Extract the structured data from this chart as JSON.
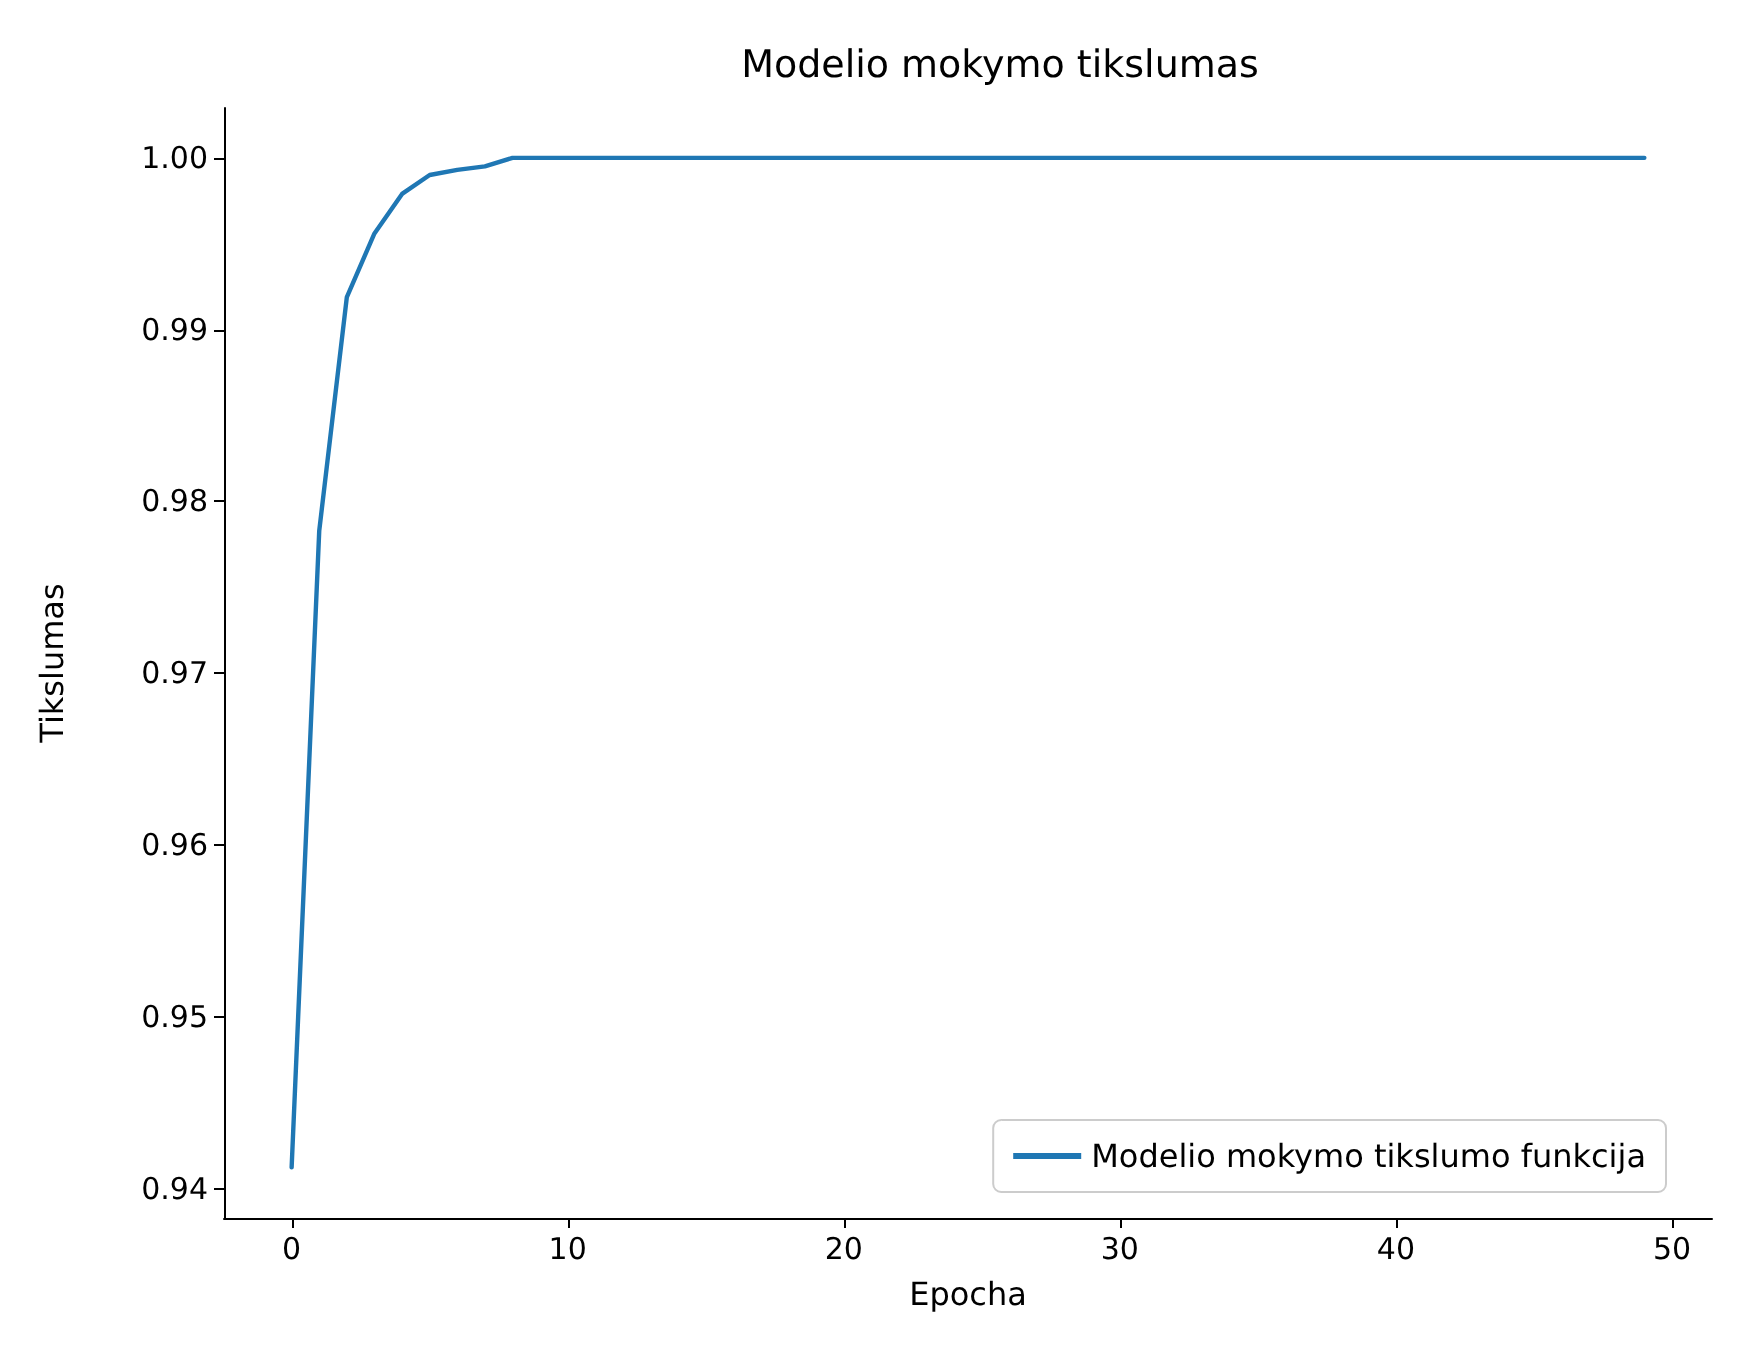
{
  "chart_data": {
    "type": "line",
    "title": "Modelio mokymo tikslumas",
    "xlabel": "Epocha",
    "ylabel": "Tikslumas",
    "x": [
      0,
      1,
      2,
      3,
      4,
      5,
      6,
      7,
      8,
      9,
      10,
      11,
      12,
      13,
      14,
      15,
      16,
      17,
      18,
      19,
      20,
      21,
      22,
      23,
      24,
      25,
      26,
      27,
      28,
      29,
      30,
      31,
      32,
      33,
      34,
      35,
      36,
      37,
      38,
      39,
      40,
      41,
      42,
      43,
      44,
      45,
      46,
      47,
      48,
      49
    ],
    "series": [
      {
        "name": "Modelio mokymo tikslumo funkcija",
        "color": "#1f77b4",
        "values": [
          0.94125,
          0.9783,
          0.9919,
          0.9956,
          0.9979,
          0.999,
          0.9993,
          0.9995,
          1,
          1,
          1,
          1,
          1,
          1,
          1,
          1,
          1,
          1,
          1,
          1,
          1,
          1,
          1,
          1,
          1,
          1,
          1,
          1,
          1,
          1,
          1,
          1,
          1,
          1,
          1,
          1,
          1,
          1,
          1,
          1,
          1,
          1,
          1,
          1,
          1,
          1,
          1,
          1,
          1,
          1
        ]
      }
    ],
    "xlim": [
      -2.45,
      51.45
    ],
    "ylim": [
      0.9383,
      1.0029
    ],
    "xticks": [
      0,
      10,
      20,
      30,
      40,
      50
    ],
    "yticks": [
      {
        "value": 0.94,
        "label": "0.94"
      },
      {
        "value": 0.95,
        "label": "0.95"
      },
      {
        "value": 0.96,
        "label": "0.96"
      },
      {
        "value": 0.97,
        "label": "0.97"
      },
      {
        "value": 0.98,
        "label": "0.98"
      },
      {
        "value": 0.99,
        "label": "0.99"
      },
      {
        "value": 1.0,
        "label": "1.00"
      }
    ],
    "grid": false,
    "legend": "bottom right",
    "marker": "none",
    "line_style": "solid"
  }
}
